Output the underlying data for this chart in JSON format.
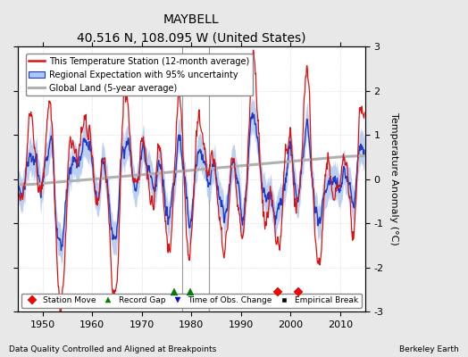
{
  "title": "MAYBELL",
  "subtitle": "40.516 N, 108.095 W (United States)",
  "xlabel_bottom": "Data Quality Controlled and Aligned at Breakpoints",
  "xlabel_bottom_right": "Berkeley Earth",
  "ylabel": "Temperature Anomaly (°C)",
  "ylim": [
    -3,
    3
  ],
  "xlim": [
    1945,
    2015
  ],
  "yticks": [
    -3,
    -2,
    -1,
    0,
    1,
    2,
    3
  ],
  "xticks": [
    1950,
    1960,
    1970,
    1980,
    1990,
    2000,
    2010
  ],
  "background_color": "#e8e8e8",
  "plot_bg_color": "#ffffff",
  "legend_entries": [
    "This Temperature Station (12-month average)",
    "Regional Expectation with 95% uncertainty",
    "Global Land (5-year average)"
  ],
  "station_moves": [
    1997.5,
    2001.5
  ],
  "record_gaps": [
    1976.5,
    1979.8
  ],
  "time_obs_changes": [
    1978.2,
    1983.5
  ],
  "time_obs_vlines": [
    1978.2,
    1983.5
  ],
  "empirical_breaks": []
}
